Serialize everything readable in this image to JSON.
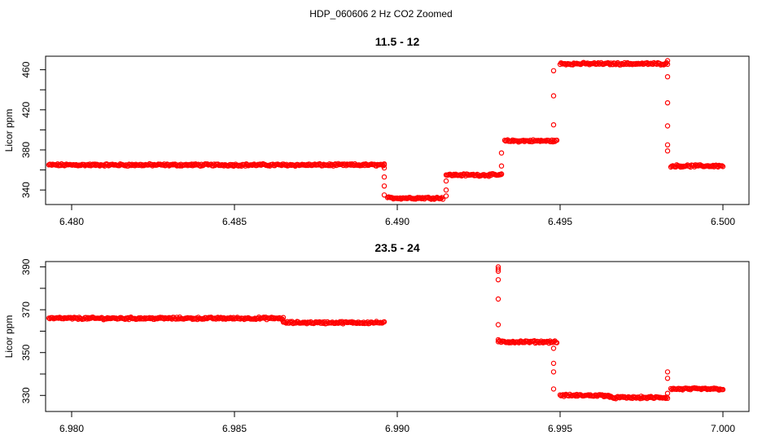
{
  "page_title": "HDP_060606  2 Hz CO2 Zoomed",
  "colors": {
    "points": "#ff0000",
    "axes": "#000000",
    "background": "#ffffff"
  },
  "chart_data": [
    {
      "type": "scatter",
      "title": "11.5 - 12",
      "xlabel": "",
      "ylabel": "Licor ppm",
      "xlim": [
        6.4792,
        6.5008
      ],
      "ylim": [
        325.5,
        473.5
      ],
      "x_ticks": [
        6.48,
        6.485,
        6.49,
        6.495,
        6.5
      ],
      "x_tick_labels": [
        "6.480",
        "6.485",
        "6.490",
        "6.495",
        "6.500"
      ],
      "y_ticks": [
        340,
        380,
        420,
        460
      ],
      "y_tick_labels": [
        "340",
        "380",
        "420",
        "460"
      ],
      "grid": false,
      "legend": "none",
      "marker": "open-circle",
      "segments": [
        {
          "x_start": 6.4793,
          "x_end": 6.4896,
          "y": 365
        },
        {
          "x_start": 6.4897,
          "x_end": 6.4914,
          "y": 332
        },
        {
          "x_start": 6.4915,
          "x_end": 6.4932,
          "y": 355
        },
        {
          "x_start": 6.4933,
          "x_end": 6.4949,
          "y": 389
        },
        {
          "x_start": 6.495,
          "x_end": 6.4983,
          "y": 466
        },
        {
          "x_start": 6.4984,
          "x_end": 6.5,
          "y": 364
        }
      ],
      "transitions": [
        {
          "x": 6.4896,
          "y": [
            365,
            362,
            353,
            344,
            335
          ]
        },
        {
          "x": 6.4915,
          "y": [
            334,
            340,
            349
          ]
        },
        {
          "x": 6.4932,
          "y": [
            356,
            364,
            377
          ]
        },
        {
          "x": 6.4948,
          "y": [
            405,
            434,
            459
          ]
        },
        {
          "x": 6.4983,
          "y": [
            469,
            453,
            427,
            404,
            385,
            379
          ]
        }
      ]
    },
    {
      "type": "scatter",
      "title": "23.5 - 24",
      "xlabel": "",
      "ylabel": "Licor ppm",
      "xlim": [
        6.9792,
        7.0008
      ],
      "ylim": [
        322.5,
        392.5
      ],
      "x_ticks": [
        6.98,
        6.985,
        6.99,
        6.995,
        7.0
      ],
      "x_tick_labels": [
        "6.980",
        "6.985",
        "6.990",
        "6.995",
        "7.000"
      ],
      "y_ticks": [
        330,
        350,
        370,
        390
      ],
      "y_tick_labels": [
        "330",
        "350",
        "370",
        "390"
      ],
      "grid": false,
      "legend": "none",
      "marker": "open-circle",
      "segments": [
        {
          "x_start": 6.9793,
          "x_end": 6.9865,
          "y": 366
        },
        {
          "x_start": 6.9865,
          "x_end": 6.9896,
          "y": 364
        },
        {
          "x_start": 6.9931,
          "x_end": 6.9949,
          "y": 355
        },
        {
          "x_start": 6.995,
          "x_end": 6.9965,
          "y": 330
        },
        {
          "x_start": 6.9965,
          "x_end": 6.9983,
          "y": 329
        },
        {
          "x_start": 6.9984,
          "x_end": 7.0,
          "y": 333
        }
      ],
      "transitions": [
        {
          "x": 6.9931,
          "y": [
            390,
            389,
            388,
            384,
            375,
            363,
            356
          ]
        },
        {
          "x": 6.9948,
          "y": [
            352,
            345,
            341,
            333
          ]
        },
        {
          "x": 6.9983,
          "y": [
            331,
            338,
            341
          ]
        }
      ]
    }
  ]
}
